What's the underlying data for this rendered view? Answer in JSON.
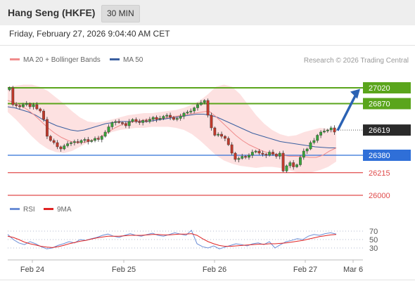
{
  "header": {
    "title": "Hang Seng (HKFE)",
    "timeframe": "30 MIN"
  },
  "timestamp": "Friday, February 27, 2026 9:04:40 AM CET",
  "legend": {
    "ma20_label": "MA 20 + Bollinger Bands",
    "ma50_label": "MA 50",
    "rsi_label": "RSI",
    "rsi_ma_label": "9MA"
  },
  "credit": "Research © 2026 Trading Central",
  "colors": {
    "green_level": "#5aa51c",
    "blue_level": "#2f6fd8",
    "red_level": "#e04b4b",
    "last_price": "#2a2a2a",
    "arrow": "#2b62b4",
    "ma20": "#f08c8c",
    "ma50": "#3a5fa0",
    "bollinger_fill": "#fcd7d7",
    "candle_up": "#39a33a",
    "candle_down": "#c0392b",
    "rsi": "#6b8ed6",
    "rsi_ma": "#e02424"
  },
  "chart_data": [
    {
      "type": "candlestick",
      "title": "Hang Seng (HKFE)",
      "timeframe": "30 MIN",
      "x_ticks": [
        "Feb 24",
        "Feb 25",
        "Feb 26",
        "Feb 27",
        "Mar 6"
      ],
      "ylim": [
        25960,
        27120
      ],
      "levels": [
        {
          "label": "27020",
          "value": 27020,
          "kind": "resistance",
          "color": "#5aa51c"
        },
        {
          "label": "26870",
          "value": 26870,
          "kind": "resistance",
          "color": "#5aa51c"
        },
        {
          "label": "26619",
          "value": 26619,
          "kind": "last_price",
          "color": "#2a2a2a"
        },
        {
          "label": "26380",
          "value": 26380,
          "kind": "pivot",
          "color": "#2f6fd8"
        },
        {
          "label": "26215",
          "value": 26215,
          "kind": "support",
          "color": "#e04b4b"
        },
        {
          "label": "26000",
          "value": 26000,
          "kind": "support",
          "color": "#e04b4b"
        }
      ],
      "forecast_arrow": {
        "from": 26615,
        "to": 27010,
        "direction": "up"
      },
      "close_path": [
        27020,
        26860,
        26850,
        26840,
        26860,
        26870,
        26840,
        26860,
        26820,
        26800,
        26720,
        26560,
        26520,
        26500,
        26460,
        26440,
        26470,
        26490,
        26500,
        26510,
        26500,
        26520,
        26530,
        26510,
        26520,
        26540,
        26530,
        26560,
        26600,
        26650,
        26690,
        26700,
        26690,
        26680,
        26660,
        26700,
        26720,
        26700,
        26690,
        26710,
        26700,
        26720,
        26740,
        26720,
        26730,
        26750,
        26760,
        26740,
        26720,
        26730,
        26750,
        26780,
        26790,
        26800,
        26830,
        26860,
        26880,
        26900,
        26760,
        26640,
        26570,
        26580,
        26560,
        26540,
        26480,
        26400,
        26340,
        26350,
        26370,
        26360,
        26380,
        26410,
        26420,
        26400,
        26390,
        26380,
        26410,
        26390,
        26370,
        26400,
        26230,
        26280,
        26310,
        26270,
        26290,
        26360,
        26420,
        26440,
        26500,
        26520,
        26570,
        26600,
        26610,
        26620,
        26640,
        26600
      ],
      "ma20_path": [
        26900,
        26880,
        26850,
        26810,
        26760,
        26700,
        26640,
        26590,
        26550,
        26520,
        26500,
        26500,
        26510,
        26530,
        26560,
        26600,
        26640,
        26670,
        26690,
        26700,
        26710,
        26720,
        26730,
        26730,
        26740,
        26750,
        26760,
        26770,
        26780,
        26790,
        26800,
        26750,
        26690,
        26630,
        26570,
        26520,
        26480,
        26450,
        26420,
        26400,
        26390,
        26380,
        26370,
        26370,
        26370,
        26360,
        26360,
        26380,
        26420,
        26450
      ],
      "ma50_path": [
        26840,
        26830,
        26810,
        26790,
        26760,
        26720,
        26690,
        26660,
        26640,
        26620,
        26610,
        26620,
        26640,
        26660,
        26680,
        26690,
        26700,
        26700,
        26700,
        26700,
        26700,
        26710,
        26720,
        26730,
        26740,
        26750,
        26760,
        26770,
        26770,
        26760,
        26740,
        26710,
        26680,
        26650,
        26620,
        26590,
        26570,
        26550,
        26530,
        26510,
        26500,
        26490,
        26480,
        26470,
        26460,
        26455,
        26450,
        26450
      ],
      "bollinger_upper_path": [
        27030,
        27040,
        27050,
        27050,
        27030,
        26990,
        26930,
        26870,
        26800,
        26740,
        26700,
        26690,
        26700,
        26720,
        26740,
        26760,
        26770,
        26780,
        26780,
        26790,
        26800,
        26810,
        26830,
        26860,
        26900,
        26960,
        27030,
        27050,
        27030,
        26960,
        26860,
        26760,
        26680,
        26620,
        26580,
        26560,
        26570,
        26600,
        26620,
        26640,
        26630,
        26600
      ],
      "bollinger_lower_path": [
        26790,
        26720,
        26640,
        26560,
        26490,
        26440,
        26410,
        26400,
        26420,
        26460,
        26500,
        26540,
        26570,
        26600,
        26620,
        26630,
        26640,
        26640,
        26650,
        26650,
        26650,
        26640,
        26620,
        26580,
        26520,
        26450,
        26380,
        26330,
        26300,
        26280,
        26270,
        26260,
        26270,
        26270,
        26260,
        26240,
        26220,
        26210,
        26220,
        26240,
        26270,
        26320
      ]
    },
    {
      "type": "line",
      "ylim": [
        15,
        85
      ],
      "y_ticks": [
        70,
        50,
        30
      ],
      "x_ticks": [
        "Feb 24",
        "Feb 25",
        "Feb 26",
        "Feb 27",
        "Mar 6"
      ],
      "series": [
        {
          "name": "RSI",
          "color": "#6b8ed6",
          "values": [
            62,
            50,
            42,
            38,
            45,
            40,
            33,
            28,
            30,
            36,
            40,
            45,
            42,
            50,
            48,
            52,
            55,
            60,
            63,
            58,
            55,
            60,
            64,
            60,
            58,
            62,
            65,
            60,
            58,
            62,
            66,
            63,
            60,
            72,
            40,
            33,
            30,
            35,
            28,
            32,
            36,
            40,
            38,
            35,
            40,
            42,
            38,
            45,
            30,
            38,
            45,
            48,
            52,
            50,
            58,
            62,
            60,
            64,
            66,
            63
          ]
        },
        {
          "name": "9MA",
          "color": "#e02424",
          "values": [
            58,
            55,
            50,
            44,
            40,
            37,
            34,
            32,
            31,
            33,
            36,
            40,
            43,
            46,
            48,
            51,
            54,
            56,
            58,
            58,
            58,
            59,
            60,
            60,
            60,
            61,
            62,
            62,
            61,
            61,
            62,
            63,
            63,
            64,
            60,
            52,
            45,
            40,
            36,
            34,
            34,
            35,
            36,
            37,
            38,
            39,
            39,
            40,
            40,
            41,
            42,
            44,
            46,
            48,
            51,
            54,
            57,
            59,
            61,
            62
          ]
        }
      ]
    }
  ]
}
